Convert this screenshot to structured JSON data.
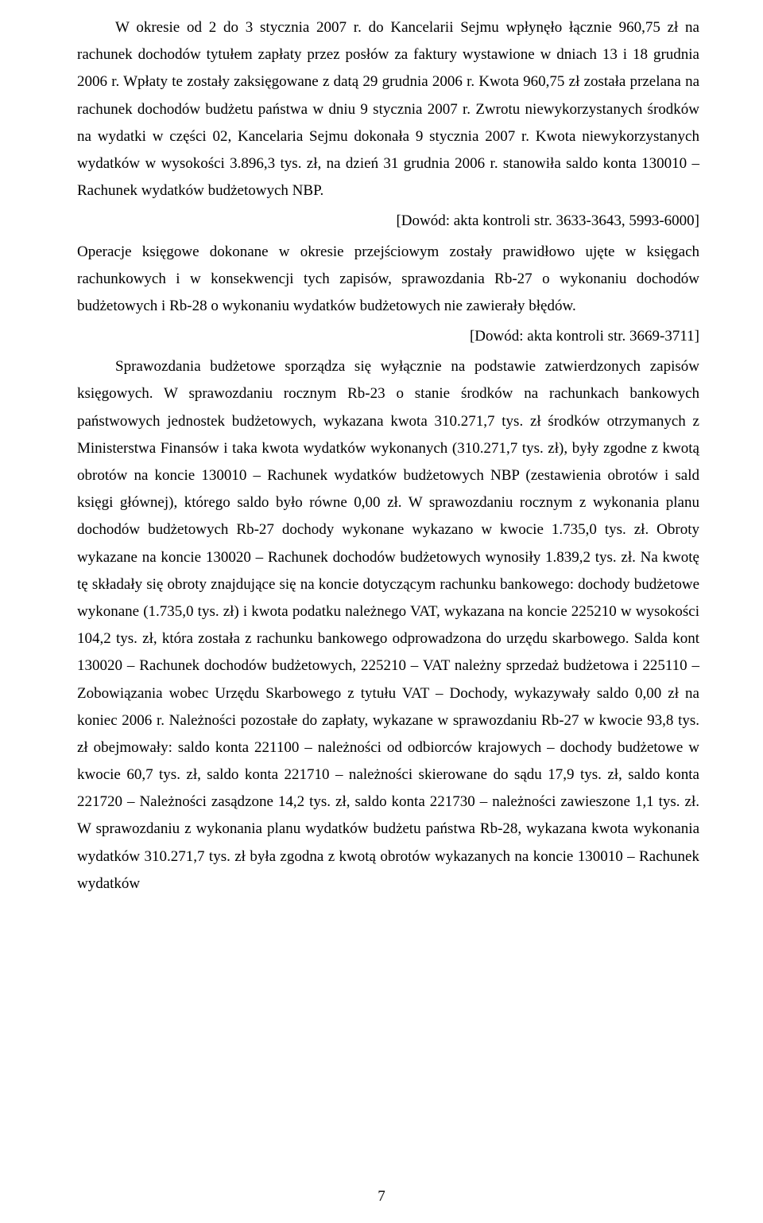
{
  "document": {
    "para1": "W okresie od 2 do 3 stycznia 2007 r. do Kancelarii Sejmu wpłynęło łącznie 960,75 zł na rachunek dochodów tytułem zapłaty przez posłów za faktury wystawione w dniach 13 i 18 grudnia 2006 r. Wpłaty te zostały zaksięgowane z datą 29 grudnia 2006 r. Kwota 960,75 zł została przelana na rachunek dochodów budżetu państwa w dniu 9 stycznia 2007 r. Zwrotu niewykorzystanych środków na wydatki w części 02, Kancelaria Sejmu dokonała 9 stycznia 2007 r. Kwota niewykorzystanych wydatków w wysokości 3.896,3 tys. zł, na dzień 31 grudnia 2006 r. stanowiła saldo konta 130010 – Rachunek wydatków budżetowych NBP.",
    "ref1": "[Dowód: akta kontroli str. 3633-3643, 5993-6000]",
    "para2": "Operacje księgowe dokonane w okresie przejściowym zostały prawidłowo ujęte w księgach rachunkowych i w konsekwencji tych zapisów, sprawozdania Rb-27 o wykonaniu dochodów budżetowych i Rb-28 o wykonaniu wydatków budżetowych nie zawierały błędów.",
    "ref2": "[Dowód: akta kontroli str. 3669-3711]",
    "para3": "Sprawozdania budżetowe sporządza się wyłącznie na podstawie zatwierdzonych zapisów księgowych. W sprawozdaniu rocznym Rb-23 o stanie środków na rachunkach bankowych państwowych jednostek budżetowych, wykazana kwota 310.271,7 tys. zł środków otrzymanych z Ministerstwa Finansów i taka kwota wydatków wykonanych (310.271,7 tys. zł), były zgodne z kwotą obrotów na koncie 130010 – Rachunek wydatków budżetowych NBP (zestawienia obrotów i sald księgi głównej), którego saldo było równe 0,00 zł. W sprawozdaniu rocznym z wykonania planu dochodów budżetowych Rb-27 dochody wykonane wykazano w kwocie 1.735,0 tys. zł. Obroty wykazane na koncie 130020 – Rachunek dochodów budżetowych wynosiły 1.839,2 tys. zł. Na kwotę tę składały się obroty znajdujące się na koncie dotyczącym rachunku bankowego: dochody budżetowe wykonane (1.735,0 tys. zł) i kwota podatku należnego VAT, wykazana na koncie 225210 w wysokości 104,2 tys. zł, która została z rachunku bankowego odprowadzona do urzędu skarbowego. Salda kont 130020 – Rachunek dochodów budżetowych, 225210 – VAT należny sprzedaż budżetowa i 225110 – Zobowiązania wobec Urzędu Skarbowego z tytułu VAT – Dochody, wykazywały saldo 0,00 zł na koniec 2006 r. Należności pozostałe do zapłaty, wykazane w sprawozdaniu Rb-27 w kwocie 93,8 tys. zł obejmowały: saldo konta 221100 – należności od odbiorców krajowych – dochody budżetowe w kwocie 60,7 tys. zł, saldo konta 221710 – należności skierowane do sądu 17,9 tys. zł, saldo konta 221720 – Należności zasądzone 14,2 tys. zł, saldo konta 221730 – należności zawieszone 1,1 tys. zł. W sprawozdaniu z wykonania planu wydatków budżetu państwa Rb-28, wykazana kwota wykonania wydatków 310.271,7 tys. zł była zgodna z kwotą obrotów wykazanych na koncie 130010 – Rachunek wydatków",
    "page_number": "7"
  }
}
